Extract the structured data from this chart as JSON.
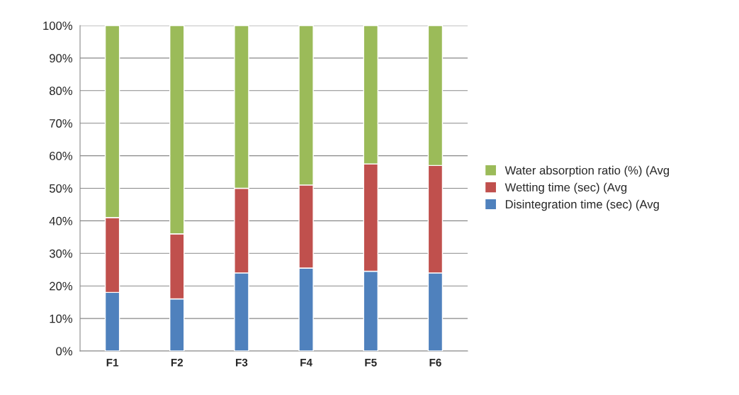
{
  "chart_data": {
    "type": "bar",
    "stacked": true,
    "categories": [
      "F1",
      "F2",
      "F3",
      "F4",
      "F5",
      "F6"
    ],
    "series": [
      {
        "name": "Disintegration time (sec) (Avg",
        "color": "#4f81bd",
        "values": [
          18,
          16,
          24,
          25.5,
          24.5,
          24
        ]
      },
      {
        "name": "Wetting time (sec) (Avg",
        "color": "#c0504d",
        "values": [
          23,
          20,
          26,
          25.5,
          33,
          33
        ]
      },
      {
        "name": "Water absorption ratio (%) (Avg",
        "color": "#9bbb59",
        "values": [
          59,
          64,
          50,
          49,
          42.5,
          43
        ]
      }
    ],
    "ylim": [
      0,
      100
    ],
    "yticks": [
      {
        "value": 0,
        "label": "0%"
      },
      {
        "value": 10,
        "label": "10%"
      },
      {
        "value": 20,
        "label": "20%"
      },
      {
        "value": 30,
        "label": "30%"
      },
      {
        "value": 40,
        "label": "40%"
      },
      {
        "value": 50,
        "label": "50%"
      },
      {
        "value": 60,
        "label": "60%"
      },
      {
        "value": 70,
        "label": "70%"
      },
      {
        "value": 80,
        "label": "80%"
      },
      {
        "value": 90,
        "label": "90%"
      },
      {
        "value": 100,
        "label": "100%"
      }
    ],
    "grid": "y",
    "legend": "right"
  }
}
